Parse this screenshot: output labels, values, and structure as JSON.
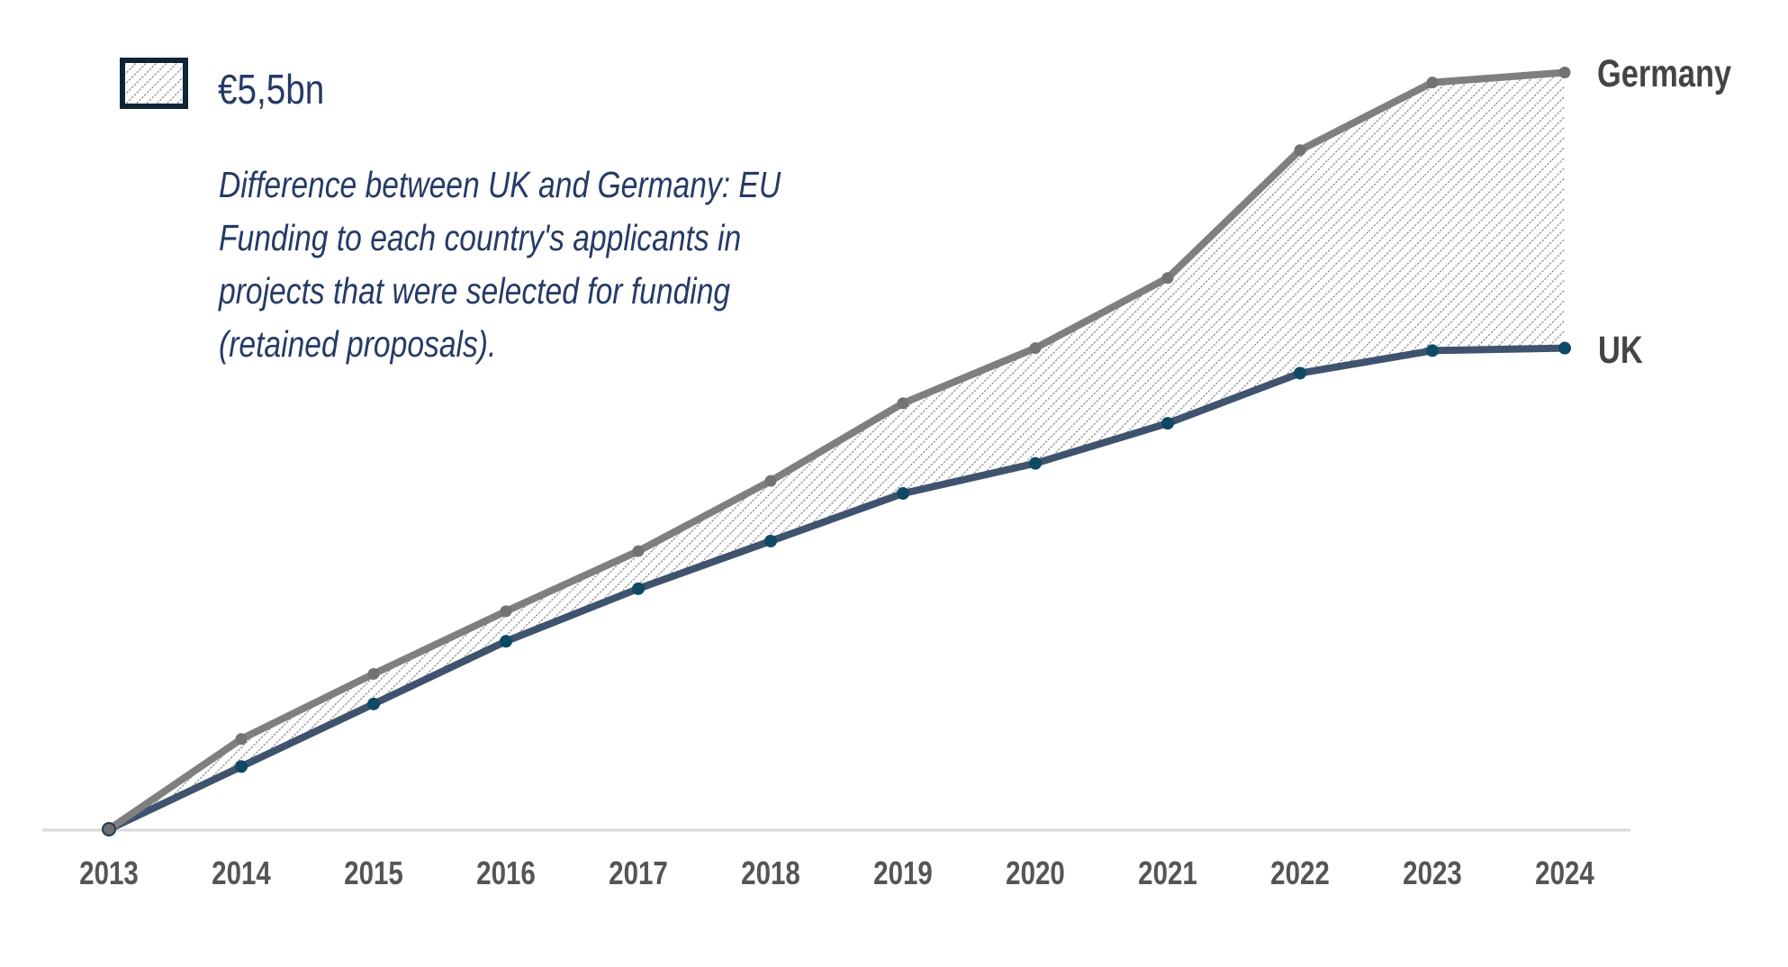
{
  "legend": {
    "swatch": "hatched-difference-area",
    "value_label": "€5,5bn"
  },
  "note": {
    "lines": [
      "Difference between UK and Germany: EU",
      "Funding to each country's applicants in",
      "projects that were selected for funding",
      "(retained proposals)."
    ]
  },
  "colors": {
    "germany_line": "#7f7f7f",
    "germany_marker": "#737373",
    "uk_line": "#3f536e",
    "uk_marker": "#0e4a66",
    "hatch": "#8c8c8c",
    "axis": "#d9d9d9",
    "legend_border": "#0f2537",
    "text_blue": "#253a66",
    "label_gray": "#444444",
    "tick_gray": "#555555"
  },
  "chart_data": {
    "type": "line",
    "title": "",
    "xlabel": "",
    "ylabel": "",
    "categories": [
      "2013",
      "2014",
      "2015",
      "2016",
      "2017",
      "2018",
      "2019",
      "2020",
      "2021",
      "2022",
      "2023",
      "2024"
    ],
    "series": [
      {
        "name": "Germany",
        "values": [
          0,
          1.8,
          3.1,
          4.35,
          5.55,
          6.95,
          8.5,
          9.6,
          11.0,
          13.55,
          14.9,
          15.1
        ]
      },
      {
        "name": "UK",
        "values": [
          0,
          1.25,
          2.5,
          3.75,
          4.8,
          5.75,
          6.7,
          7.3,
          8.1,
          9.1,
          9.55,
          9.6
        ]
      }
    ],
    "shaded_difference": {
      "between": [
        "UK",
        "Germany"
      ],
      "label": "€5,5bn"
    },
    "ylim": [
      0,
      16.6
    ],
    "y_axis_visible": false,
    "grid": false,
    "legend": "top-left",
    "series_labels_position": "right-end"
  }
}
